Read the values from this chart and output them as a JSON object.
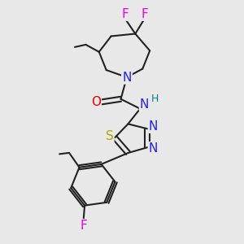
{
  "bg_color": "#e8e8e8",
  "bond_color": "#222222",
  "bond_width": 1.5,
  "atom_colors": {
    "F": "#ee00ee",
    "N": "#2222ff",
    "O": "#ee0000",
    "S": "#aaaa00",
    "H": "#008888"
  }
}
